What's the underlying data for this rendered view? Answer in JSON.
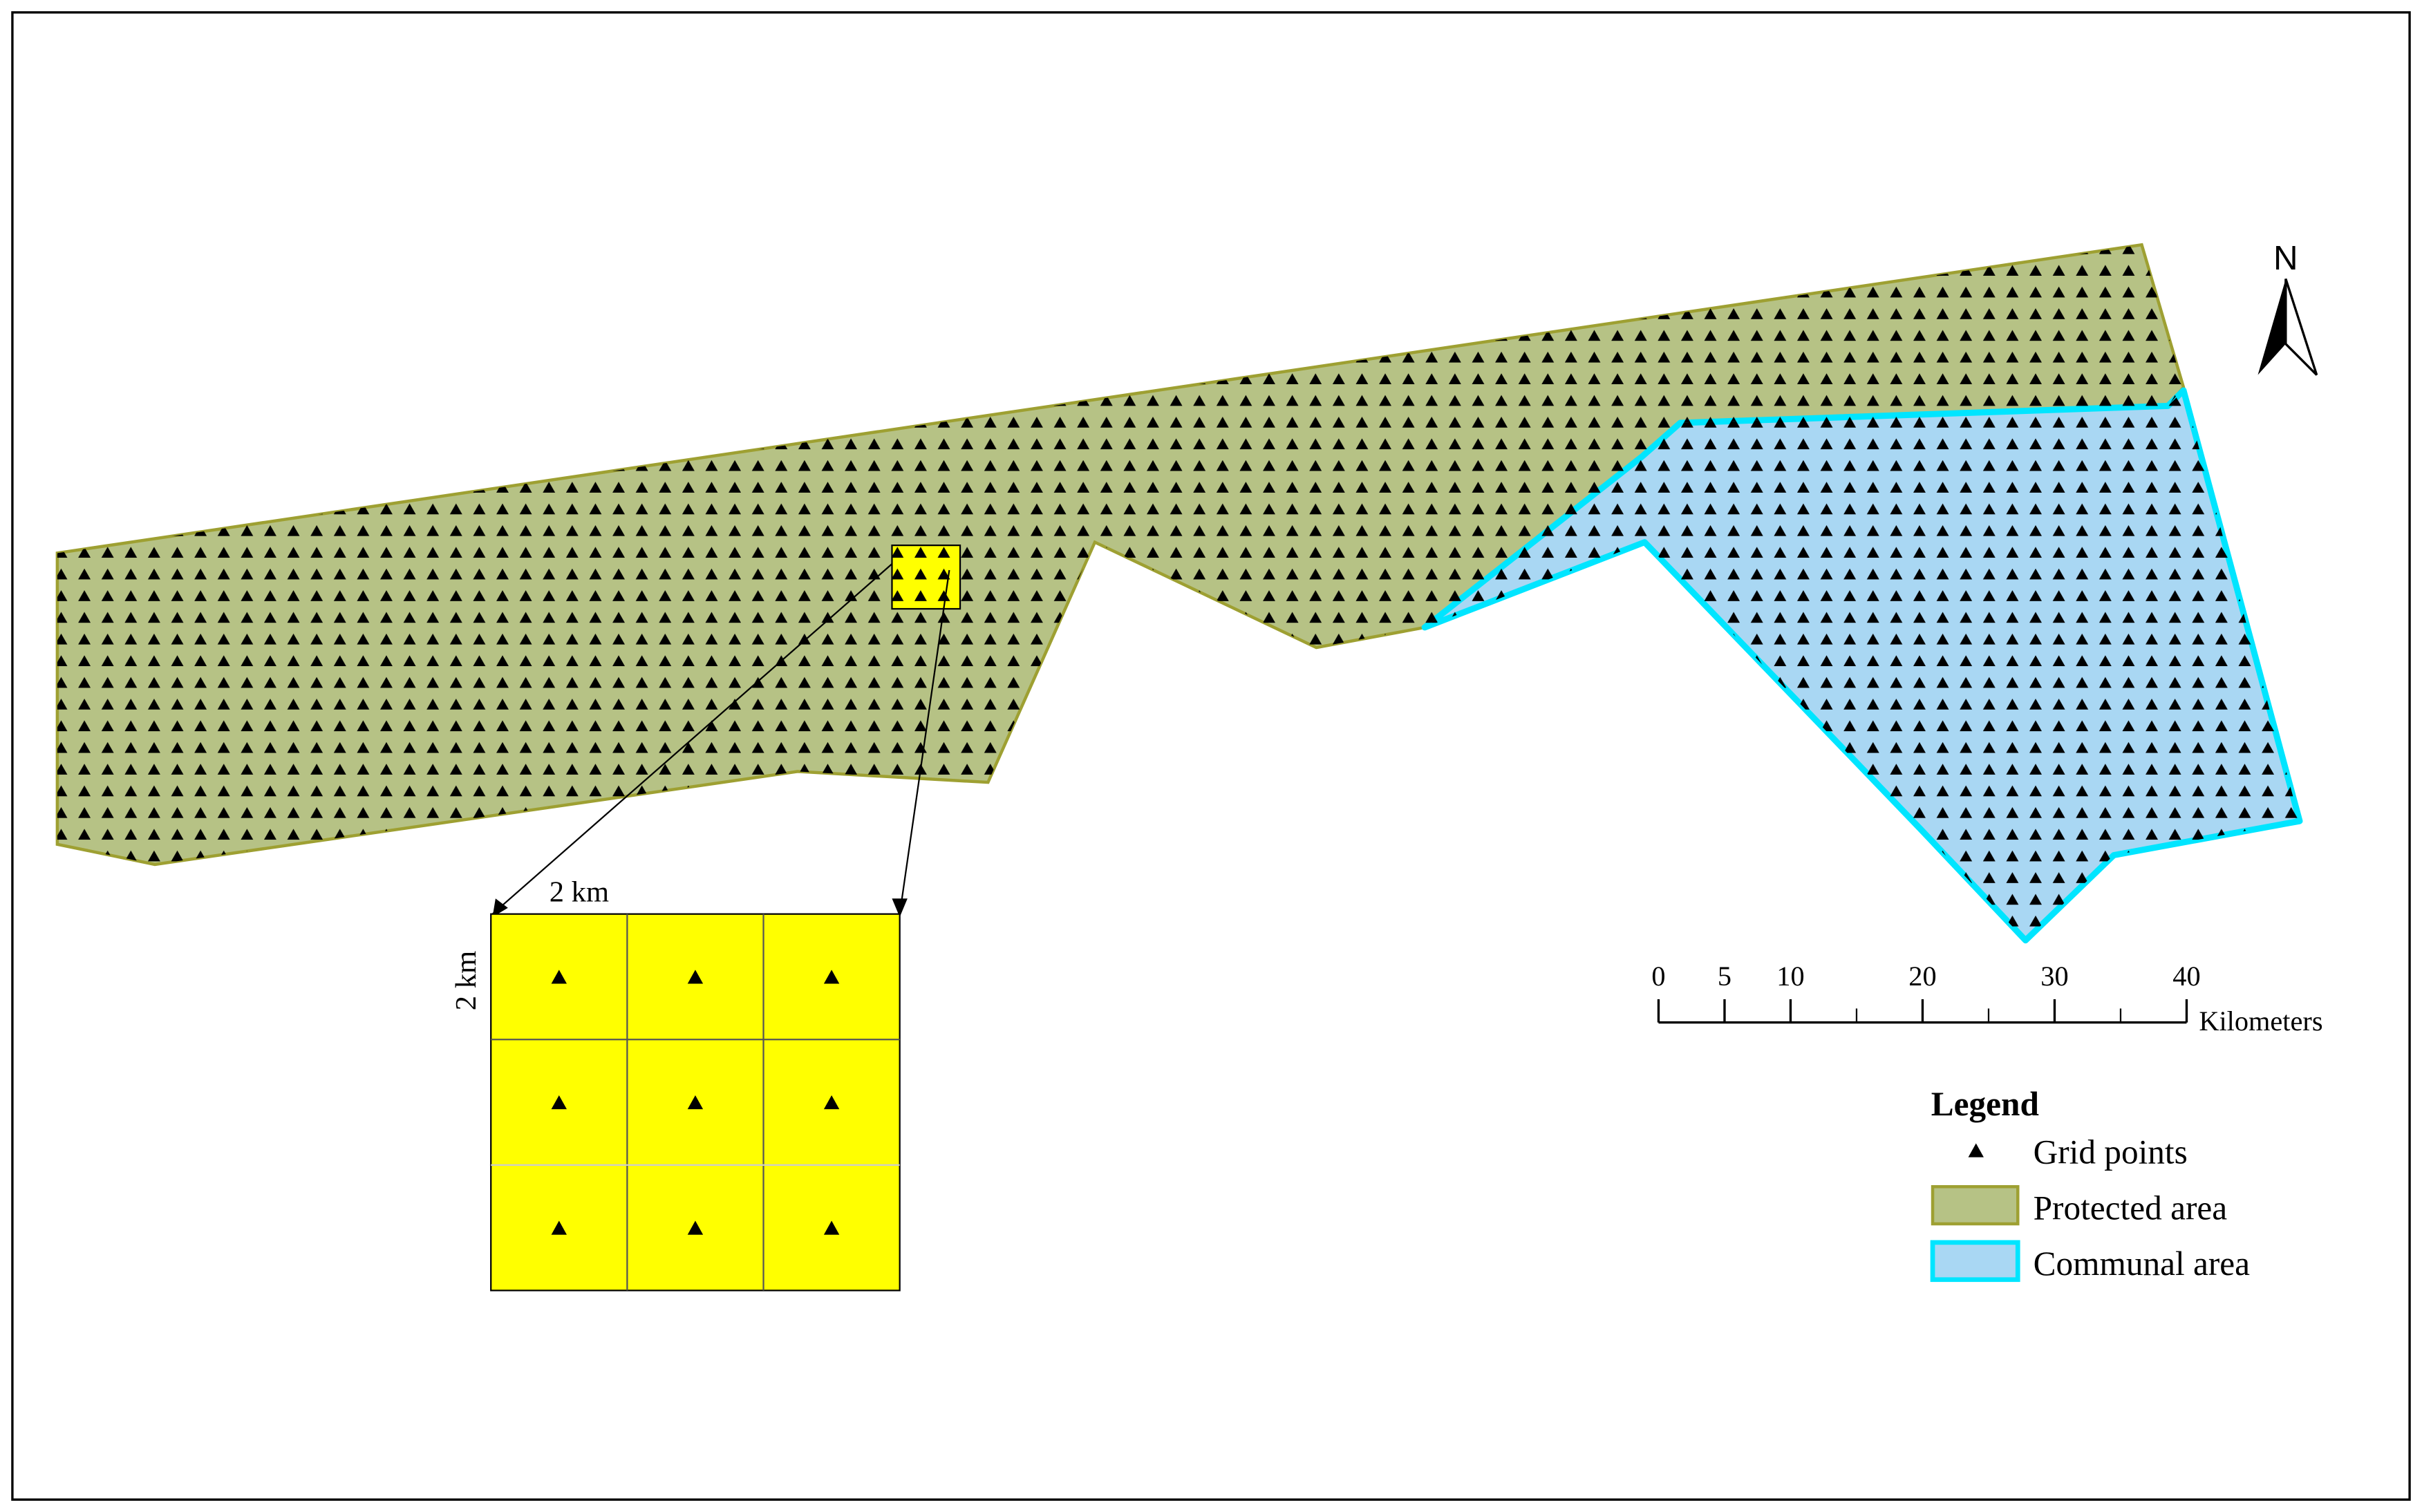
{
  "north": "N",
  "inset": {
    "width_label": "2 km",
    "height_label": "2 km"
  },
  "scale_bar": {
    "ticks": [
      0,
      5,
      10,
      20,
      30,
      40
    ],
    "unit": "Kilometers"
  },
  "legend": {
    "title": "Legend",
    "items": [
      "Grid points",
      "Protected area",
      "Communal area"
    ]
  }
}
